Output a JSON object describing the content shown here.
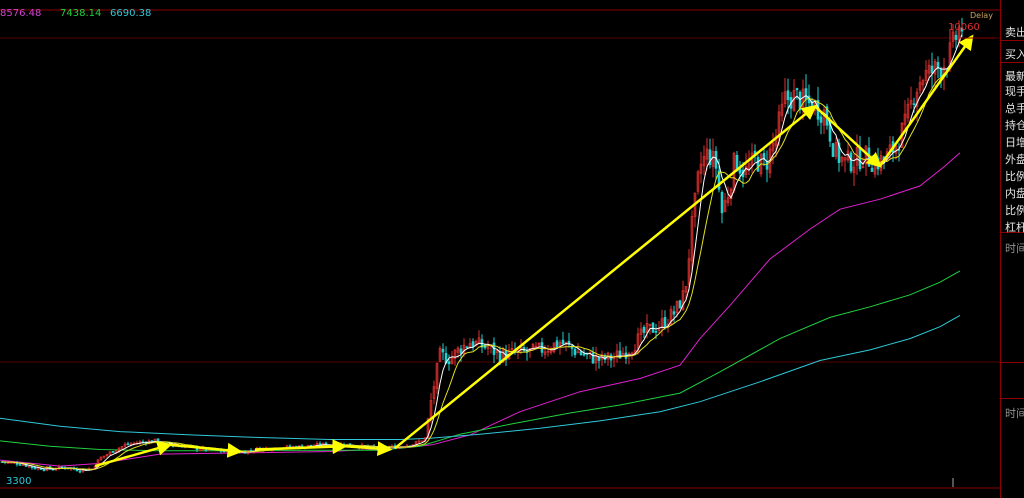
{
  "header": {
    "ma_values": [
      {
        "text": "8576.48",
        "color": "#d040d0"
      },
      {
        "text": "7438.14",
        "color": "#20d040"
      },
      {
        "text": "6690.38",
        "color": "#30c8d8"
      }
    ],
    "delay": "Delay",
    "badge": "延时"
  },
  "side_panel": {
    "rows": [
      "卖出",
      "买入",
      "最新",
      "现手",
      "总手",
      "持仓",
      "日增",
      "外盘",
      "比例",
      "内盘",
      "比例",
      "杠杆",
      "时间",
      "时间"
    ]
  },
  "chart_data": {
    "type": "candlestick",
    "y_range": [
      3050,
      10250
    ],
    "labels": {
      "high": "10060",
      "low": "3300"
    },
    "colors": {
      "up": "#e03030",
      "down": "#20d0d0",
      "ma5": "#ffffff",
      "ma10": "#e0e020",
      "ma20": "#e020d0",
      "ma60": "#20d040",
      "ma120": "#30c8d8",
      "trend": "#ffff00"
    },
    "price_path": [
      [
        0,
        3450
      ],
      [
        10,
        3430
      ],
      [
        20,
        3420
      ],
      [
        35,
        3350
      ],
      [
        50,
        3340
      ],
      [
        65,
        3360
      ],
      [
        80,
        3320
      ],
      [
        92,
        3340
      ],
      [
        100,
        3500
      ],
      [
        112,
        3600
      ],
      [
        125,
        3700
      ],
      [
        140,
        3740
      ],
      [
        155,
        3760
      ],
      [
        170,
        3700
      ],
      [
        185,
        3680
      ],
      [
        200,
        3640
      ],
      [
        215,
        3620
      ],
      [
        230,
        3590
      ],
      [
        245,
        3600
      ],
      [
        260,
        3640
      ],
      [
        280,
        3660
      ],
      [
        300,
        3670
      ],
      [
        320,
        3700
      ],
      [
        340,
        3710
      ],
      [
        355,
        3690
      ],
      [
        370,
        3660
      ],
      [
        385,
        3650
      ],
      [
        400,
        3680
      ],
      [
        415,
        3720
      ],
      [
        425,
        3800
      ],
      [
        432,
        4450
      ],
      [
        440,
        5050
      ],
      [
        450,
        5000
      ],
      [
        460,
        5150
      ],
      [
        470,
        5250
      ],
      [
        480,
        5200
      ],
      [
        490,
        5150
      ],
      [
        500,
        5050
      ],
      [
        515,
        5080
      ],
      [
        530,
        5100
      ],
      [
        545,
        5150
      ],
      [
        560,
        5250
      ],
      [
        575,
        5120
      ],
      [
        585,
        5050
      ],
      [
        600,
        4980
      ],
      [
        615,
        5020
      ],
      [
        630,
        5150
      ],
      [
        645,
        5400
      ],
      [
        660,
        5500
      ],
      [
        675,
        5700
      ],
      [
        685,
        6000
      ],
      [
        692,
        7000
      ],
      [
        700,
        7900
      ],
      [
        708,
        8100
      ],
      [
        716,
        7900
      ],
      [
        722,
        7200
      ],
      [
        728,
        7500
      ],
      [
        735,
        8000
      ],
      [
        745,
        7800
      ],
      [
        755,
        8000
      ],
      [
        765,
        7900
      ],
      [
        775,
        8300
      ],
      [
        785,
        8900
      ],
      [
        795,
        8950
      ],
      [
        805,
        8850
      ],
      [
        815,
        8800
      ],
      [
        825,
        8700
      ],
      [
        835,
        8100
      ],
      [
        845,
        7950
      ],
      [
        855,
        8000
      ],
      [
        865,
        8050
      ],
      [
        875,
        7950
      ],
      [
        885,
        8000
      ],
      [
        895,
        8200
      ],
      [
        905,
        8500
      ],
      [
        915,
        9050
      ],
      [
        922,
        9250
      ],
      [
        930,
        9300
      ],
      [
        940,
        9400
      ],
      [
        948,
        9500
      ],
      [
        955,
        9800
      ],
      [
        960,
        10000
      ]
    ],
    "ma_paths": [
      {
        "name": "ma20",
        "points": [
          [
            0,
            3470
          ],
          [
            60,
            3380
          ],
          [
            100,
            3420
          ],
          [
            160,
            3560
          ],
          [
            250,
            3580
          ],
          [
            330,
            3600
          ],
          [
            400,
            3650
          ],
          [
            432,
            3700
          ],
          [
            470,
            3850
          ],
          [
            520,
            4200
          ],
          [
            580,
            4500
          ],
          [
            640,
            4700
          ],
          [
            680,
            4900
          ],
          [
            700,
            5300
          ],
          [
            730,
            5800
          ],
          [
            770,
            6500
          ],
          [
            810,
            6950
          ],
          [
            840,
            7250
          ],
          [
            880,
            7400
          ],
          [
            920,
            7600
          ],
          [
            945,
            7900
          ],
          [
            960,
            8100
          ]
        ]
      },
      {
        "name": "ma60",
        "points": [
          [
            0,
            3760
          ],
          [
            50,
            3680
          ],
          [
            100,
            3630
          ],
          [
            160,
            3610
          ],
          [
            230,
            3610
          ],
          [
            300,
            3620
          ],
          [
            380,
            3620
          ],
          [
            420,
            3680
          ],
          [
            460,
            3860
          ],
          [
            510,
            4010
          ],
          [
            570,
            4180
          ],
          [
            620,
            4300
          ],
          [
            680,
            4480
          ],
          [
            720,
            4800
          ],
          [
            780,
            5300
          ],
          [
            830,
            5620
          ],
          [
            870,
            5780
          ],
          [
            910,
            5960
          ],
          [
            940,
            6150
          ],
          [
            960,
            6320
          ]
        ]
      },
      {
        "name": "ma120",
        "points": [
          [
            0,
            4100
          ],
          [
            60,
            3980
          ],
          [
            120,
            3900
          ],
          [
            190,
            3850
          ],
          [
            260,
            3810
          ],
          [
            330,
            3780
          ],
          [
            400,
            3780
          ],
          [
            430,
            3800
          ],
          [
            480,
            3860
          ],
          [
            540,
            3950
          ],
          [
            600,
            4060
          ],
          [
            660,
            4200
          ],
          [
            700,
            4350
          ],
          [
            760,
            4650
          ],
          [
            820,
            4970
          ],
          [
            870,
            5130
          ],
          [
            910,
            5300
          ],
          [
            940,
            5480
          ],
          [
            960,
            5650
          ]
        ]
      }
    ],
    "trend_arrows": [
      [
        [
          95,
          3380
        ],
        [
          170,
          3700
        ]
      ],
      [
        [
          170,
          3700
        ],
        [
          240,
          3600
        ]
      ],
      [
        [
          255,
          3630
        ],
        [
          345,
          3680
        ]
      ],
      [
        [
          345,
          3680
        ],
        [
          390,
          3630
        ]
      ],
      [
        [
          395,
          3650
        ],
        [
          815,
          8800
        ]
      ],
      [
        [
          815,
          8800
        ],
        [
          880,
          7900
        ]
      ],
      [
        [
          880,
          7900
        ],
        [
          972,
          9850
        ]
      ]
    ]
  }
}
